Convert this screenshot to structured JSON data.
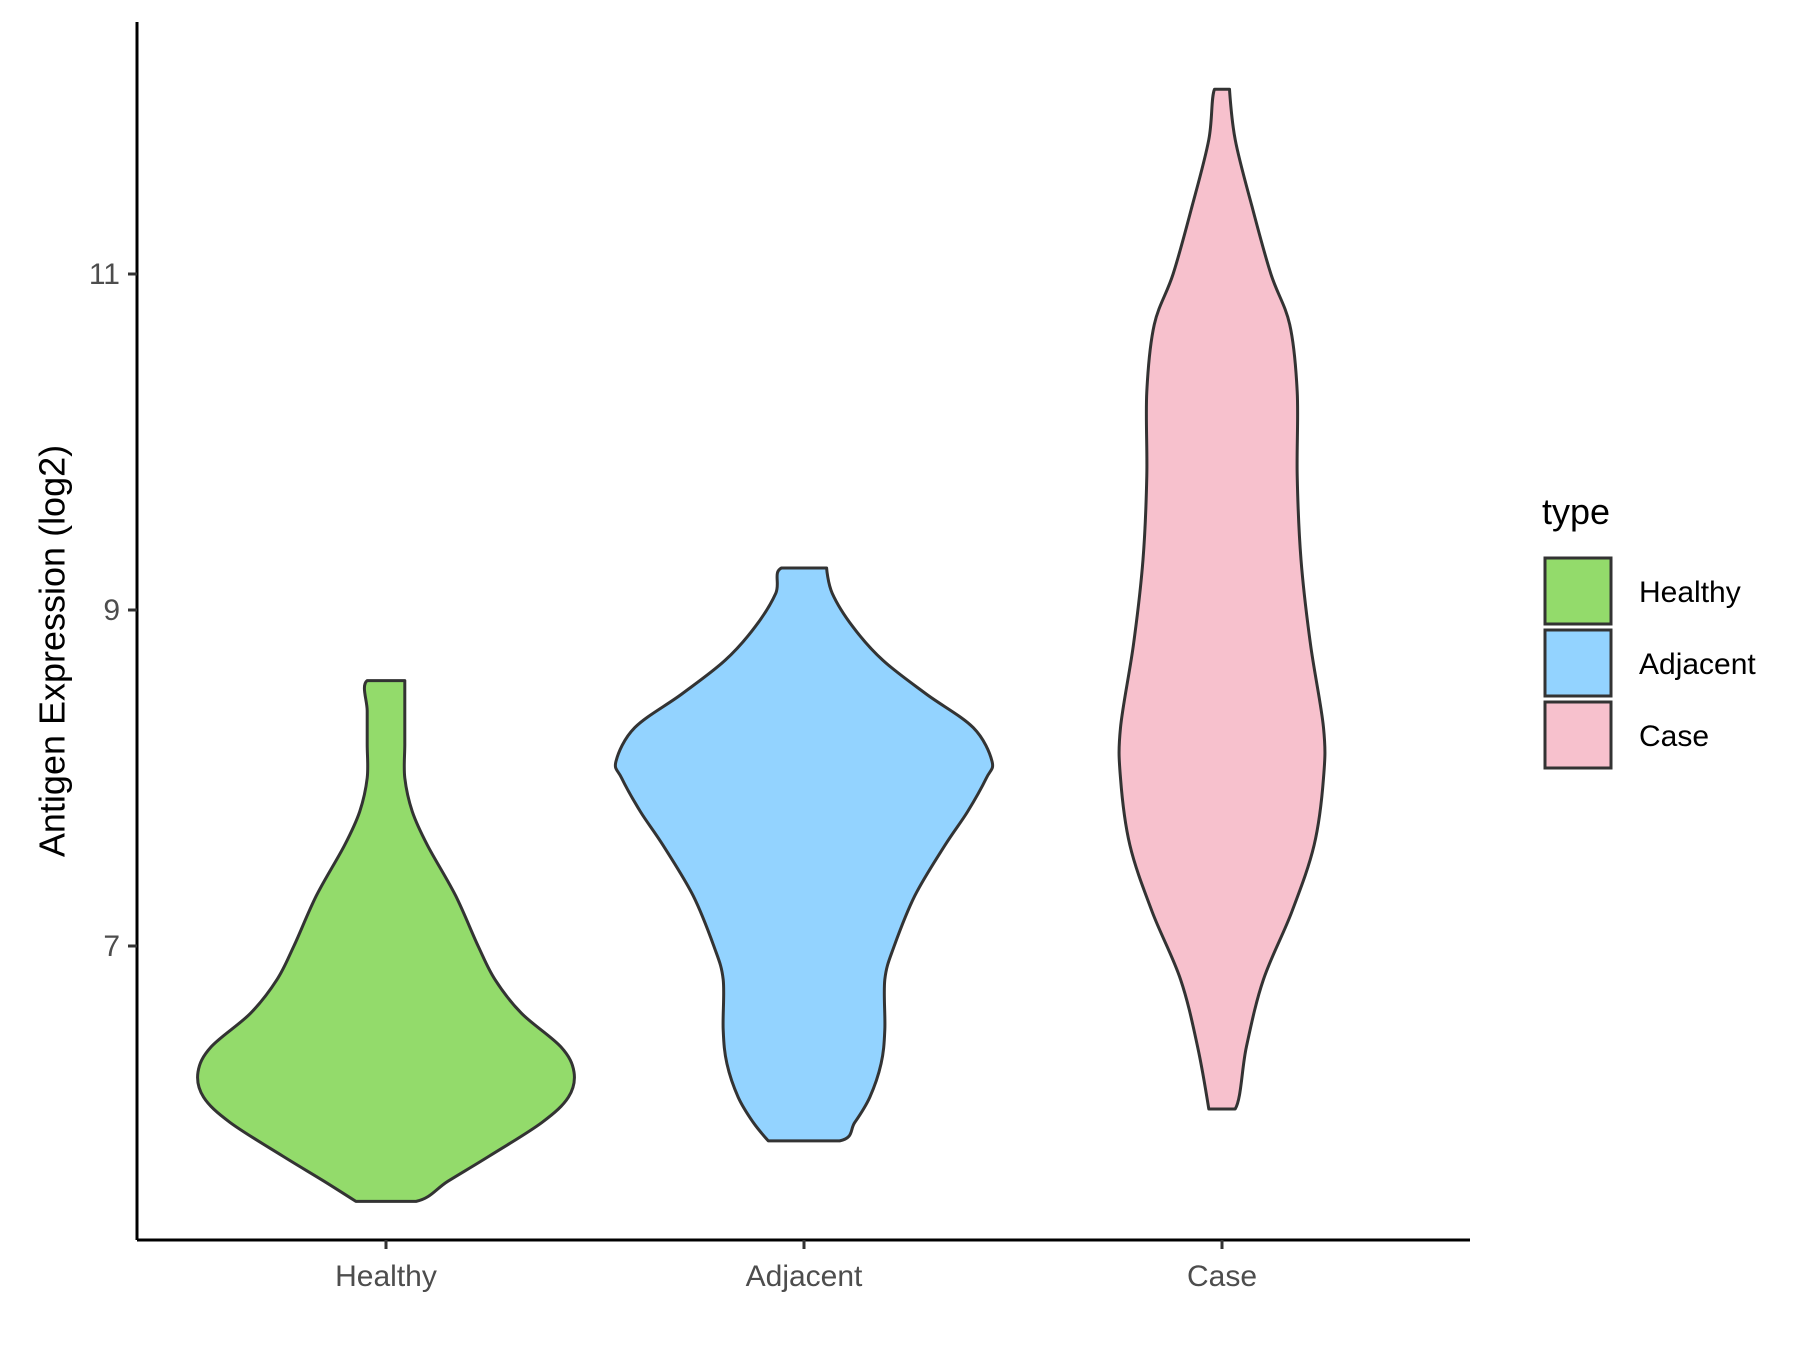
{
  "chart_data": {
    "type": "violin",
    "title": "",
    "xlabel": "",
    "ylabel": "Antigen Expression (log2)",
    "ylim": [
      5.25,
      12.5
    ],
    "yticks": [
      7,
      9,
      11
    ],
    "categories": [
      "Healthy",
      "Adjacent",
      "Case"
    ],
    "legend": {
      "title": "type",
      "position": "right",
      "entries": [
        "Healthy",
        "Adjacent",
        "Case"
      ]
    },
    "grid": false,
    "colors": {
      "Healthy": "#93DB6B",
      "Adjacent": "#93D3FF",
      "Case": "#F7C1CD"
    },
    "series": [
      {
        "name": "Healthy",
        "min": 5.48,
        "max": 8.58,
        "density_profile": [
          [
            5.48,
            0.16
          ],
          [
            5.6,
            0.33
          ],
          [
            5.75,
            0.55
          ],
          [
            5.95,
            0.83
          ],
          [
            6.1,
            0.97
          ],
          [
            6.25,
            1.0
          ],
          [
            6.4,
            0.93
          ],
          [
            6.6,
            0.72
          ],
          [
            6.8,
            0.58
          ],
          [
            7.0,
            0.49
          ],
          [
            7.3,
            0.37
          ],
          [
            7.6,
            0.22
          ],
          [
            7.8,
            0.14
          ],
          [
            8.0,
            0.1
          ],
          [
            8.2,
            0.1
          ],
          [
            8.4,
            0.1
          ],
          [
            8.58,
            0.1
          ]
        ]
      },
      {
        "name": "Adjacent",
        "min": 5.84,
        "max": 9.25,
        "density_profile": [
          [
            5.84,
            0.19
          ],
          [
            5.95,
            0.27
          ],
          [
            6.1,
            0.35
          ],
          [
            6.3,
            0.41
          ],
          [
            6.5,
            0.43
          ],
          [
            6.8,
            0.43
          ],
          [
            7.0,
            0.48
          ],
          [
            7.3,
            0.59
          ],
          [
            7.6,
            0.75
          ],
          [
            7.8,
            0.87
          ],
          [
            8.0,
            0.97
          ],
          [
            8.1,
            1.0
          ],
          [
            8.3,
            0.9
          ],
          [
            8.5,
            0.65
          ],
          [
            8.7,
            0.42
          ],
          [
            8.9,
            0.26
          ],
          [
            9.1,
            0.15
          ],
          [
            9.25,
            0.12
          ]
        ]
      },
      {
        "name": "Case",
        "min": 6.03,
        "max": 12.1,
        "density_profile": [
          [
            6.03,
            0.07
          ],
          [
            6.4,
            0.13
          ],
          [
            6.8,
            0.22
          ],
          [
            7.2,
            0.37
          ],
          [
            7.6,
            0.49
          ],
          [
            8.0,
            0.54
          ],
          [
            8.3,
            0.54
          ],
          [
            8.8,
            0.47
          ],
          [
            9.3,
            0.42
          ],
          [
            9.8,
            0.4
          ],
          [
            10.3,
            0.4
          ],
          [
            10.7,
            0.36
          ],
          [
            11.0,
            0.26
          ],
          [
            11.4,
            0.16
          ],
          [
            11.8,
            0.07
          ],
          [
            12.1,
            0.04
          ]
        ]
      }
    ]
  }
}
